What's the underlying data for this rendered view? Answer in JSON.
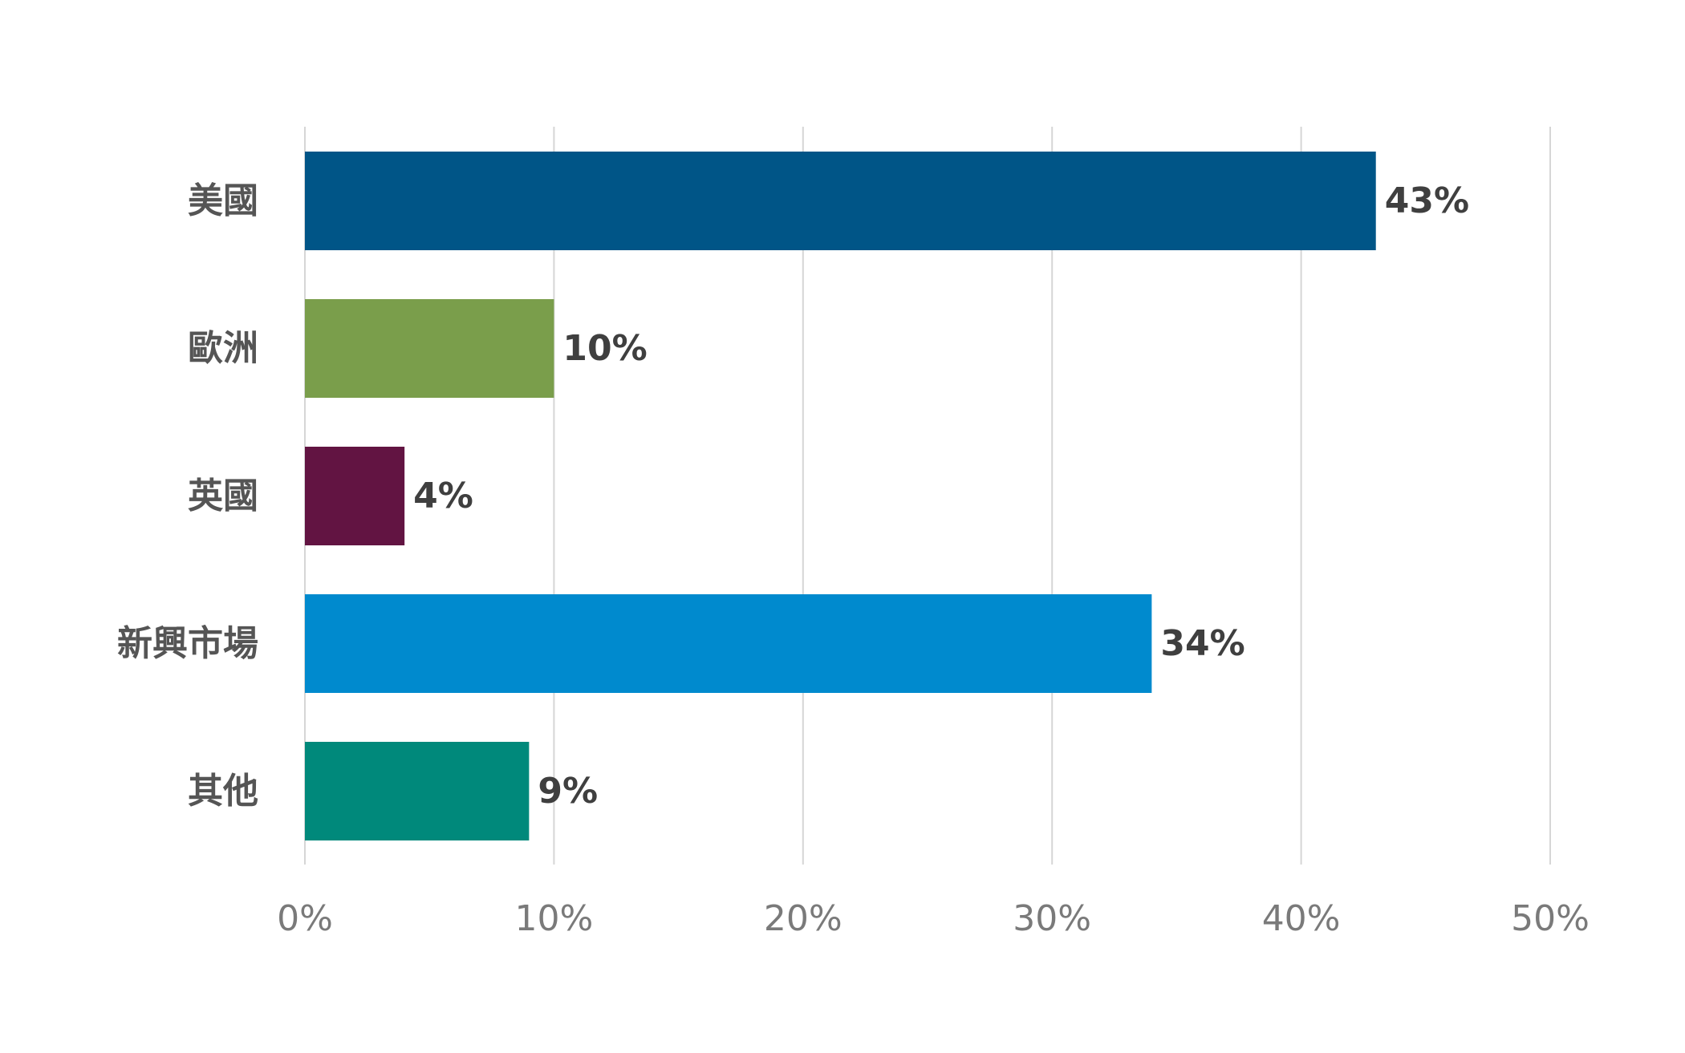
{
  "chart_data": {
    "type": "bar",
    "orientation": "horizontal",
    "categories": [
      "美國",
      "歐洲",
      "英國",
      "新興市場",
      "其他"
    ],
    "values": [
      43,
      10,
      4,
      34,
      9
    ],
    "value_labels": [
      "43%",
      "10%",
      "4%",
      "34%",
      "9%"
    ],
    "colors": [
      "#005587",
      "#7a9e4b",
      "#621442",
      "#008ACE",
      "#00897B"
    ],
    "xlim": [
      0,
      50
    ],
    "x_ticks": [
      0,
      10,
      20,
      30,
      40,
      50
    ],
    "x_tick_labels": [
      "0%",
      "10%",
      "20%",
      "30%",
      "40%",
      "50%"
    ],
    "grid": true,
    "title": "",
    "xlabel": "",
    "ylabel": ""
  }
}
